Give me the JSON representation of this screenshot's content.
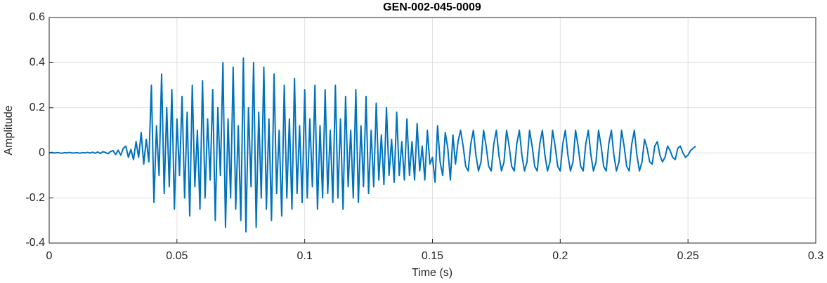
{
  "chart_data": {
    "type": "line",
    "title": "GEN-002-045-0009",
    "xlabel": "Time (s)",
    "ylabel": "Amplitude",
    "xlim": [
      0,
      0.3
    ],
    "xticks": [
      0,
      0.05,
      0.1,
      0.15,
      0.2,
      0.25,
      0.3
    ],
    "ylim": [
      -0.4,
      0.6
    ],
    "yticks": [
      -0.4,
      -0.2,
      0,
      0.2,
      0.4,
      0.6
    ],
    "grid": true,
    "x": [
      0,
      0.001,
      0.002,
      0.003,
      0.004,
      0.005,
      0.006,
      0.007,
      0.008,
      0.009,
      0.01,
      0.011,
      0.012,
      0.013,
      0.014,
      0.015,
      0.016,
      0.017,
      0.018,
      0.019,
      0.02,
      0.021,
      0.022,
      0.023,
      0.024,
      0.025,
      0.026,
      0.027,
      0.028,
      0.029,
      0.03,
      0.031,
      0.032,
      0.033,
      0.034,
      0.035,
      0.036,
      0.037,
      0.038,
      0.039,
      0.04,
      0.041,
      0.042,
      0.043,
      0.044,
      0.045,
      0.046,
      0.047,
      0.048,
      0.049,
      0.05,
      0.051,
      0.052,
      0.053,
      0.054,
      0.055,
      0.056,
      0.057,
      0.058,
      0.059,
      0.06,
      0.061,
      0.062,
      0.063,
      0.064,
      0.065,
      0.066,
      0.067,
      0.068,
      0.069,
      0.07,
      0.071,
      0.072,
      0.073,
      0.074,
      0.075,
      0.076,
      0.077,
      0.078,
      0.079,
      0.08,
      0.081,
      0.082,
      0.083,
      0.084,
      0.085,
      0.086,
      0.087,
      0.088,
      0.089,
      0.09,
      0.091,
      0.092,
      0.093,
      0.094,
      0.095,
      0.096,
      0.097,
      0.098,
      0.099,
      0.1,
      0.101,
      0.102,
      0.103,
      0.104,
      0.105,
      0.106,
      0.107,
      0.108,
      0.109,
      0.11,
      0.111,
      0.112,
      0.113,
      0.114,
      0.115,
      0.116,
      0.117,
      0.118,
      0.119,
      0.12,
      0.121,
      0.122,
      0.123,
      0.124,
      0.125,
      0.126,
      0.127,
      0.128,
      0.129,
      0.13,
      0.131,
      0.132,
      0.133,
      0.134,
      0.135,
      0.136,
      0.137,
      0.138,
      0.139,
      0.14,
      0.141,
      0.142,
      0.143,
      0.144,
      0.145,
      0.146,
      0.147,
      0.148,
      0.149,
      0.15,
      0.151,
      0.152,
      0.153,
      0.154,
      0.155,
      0.156,
      0.157,
      0.158,
      0.159,
      0.16,
      0.161,
      0.162,
      0.163,
      0.164,
      0.165,
      0.166,
      0.167,
      0.168,
      0.169,
      0.17,
      0.171,
      0.172,
      0.173,
      0.174,
      0.175,
      0.176,
      0.177,
      0.178,
      0.179,
      0.18,
      0.181,
      0.182,
      0.183,
      0.184,
      0.185,
      0.186,
      0.187,
      0.188,
      0.189,
      0.19,
      0.191,
      0.192,
      0.193,
      0.194,
      0.195,
      0.196,
      0.197,
      0.198,
      0.199,
      0.2,
      0.201,
      0.202,
      0.203,
      0.204,
      0.205,
      0.206,
      0.207,
      0.208,
      0.209,
      0.21,
      0.211,
      0.212,
      0.213,
      0.214,
      0.215,
      0.216,
      0.217,
      0.218,
      0.219,
      0.22,
      0.221,
      0.222,
      0.223,
      0.224,
      0.225,
      0.226,
      0.227,
      0.228,
      0.229,
      0.23,
      0.231,
      0.232,
      0.233,
      0.234,
      0.235,
      0.236,
      0.237,
      0.238,
      0.239,
      0.24,
      0.241,
      0.242,
      0.243,
      0.244,
      0.245,
      0.246,
      0.247,
      0.248,
      0.249,
      0.25,
      0.251,
      0.252,
      0.253
    ],
    "series": [
      {
        "name": "Amplitude",
        "color": "#0072bd",
        "values": [
          0,
          0.002,
          -0.001,
          0.001,
          0,
          -0.002,
          0.001,
          0,
          0.002,
          -0.001,
          0,
          0.001,
          -0.002,
          0.001,
          0,
          0.002,
          -0.001,
          0.003,
          -0.002,
          0.004,
          -0.003,
          0.005,
          0.002,
          -0.004,
          0.006,
          0.01,
          -0.008,
          0.012,
          -0.01,
          0.02,
          0.03,
          -0.02,
          0.015,
          -0.03,
          0.05,
          -0.02,
          0.09,
          -0.05,
          0.06,
          -0.04,
          0.3,
          -0.22,
          0.12,
          -0.1,
          0.35,
          -0.18,
          0.2,
          -0.15,
          0.28,
          -0.25,
          0.15,
          -0.1,
          0.25,
          -0.2,
          0.18,
          -0.28,
          0.3,
          -0.15,
          0.1,
          -0.25,
          0.32,
          -0.2,
          0.15,
          -0.12,
          0.28,
          -0.3,
          0.2,
          -0.1,
          0.4,
          -0.33,
          0.15,
          -0.2,
          0.38,
          -0.25,
          0.12,
          -0.3,
          0.42,
          -0.35,
          0.2,
          -0.15,
          0.4,
          -0.33,
          0.18,
          -0.2,
          0.38,
          -0.25,
          0.15,
          -0.3,
          0.35,
          -0.18,
          0.1,
          -0.28,
          0.3,
          -0.2,
          0.15,
          -0.25,
          0.33,
          -0.18,
          0.12,
          -0.22,
          0.28,
          -0.2,
          0.15,
          -0.15,
          0.3,
          -0.25,
          0.12,
          -0.2,
          0.28,
          -0.18,
          0.1,
          -0.22,
          0.3,
          -0.2,
          0.15,
          -0.25,
          0.25,
          -0.15,
          0.1,
          -0.2,
          0.28,
          -0.22,
          0.12,
          -0.15,
          0.25,
          -0.18,
          0.1,
          -0.15,
          0.22,
          -0.12,
          0.08,
          -0.14,
          0.2,
          -0.1,
          0.06,
          -0.13,
          0.18,
          -0.1,
          0.05,
          -0.12,
          0.15,
          -0.1,
          0.05,
          -0.12,
          0.13,
          -0.08,
          0.03,
          -0.12,
          0.1,
          -0.05,
          -0.02,
          -0.13,
          0.12,
          -0.04,
          -0.1,
          0.09,
          0.02,
          -0.12,
          0.08,
          -0.05,
          0.05,
          0.1,
          0.03,
          -0.06,
          -0.08,
          0.04,
          0.1,
          -0.01,
          -0.08,
          -0.04,
          0.1,
          0.03,
          -0.06,
          -0.08,
          0.04,
          0.1,
          -0.01,
          -0.08,
          -0.04,
          0.1,
          0.03,
          -0.06,
          -0.08,
          0.04,
          0.1,
          -0.01,
          -0.08,
          -0.04,
          0.1,
          0.03,
          -0.06,
          -0.08,
          0.04,
          0.1,
          -0.01,
          -0.08,
          -0.04,
          0.1,
          0.03,
          -0.06,
          -0.08,
          0.04,
          0.1,
          -0.01,
          -0.08,
          -0.04,
          0.1,
          0.03,
          -0.06,
          -0.08,
          0.04,
          0.1,
          -0.01,
          -0.08,
          -0.04,
          0.1,
          0.03,
          -0.06,
          -0.08,
          0.04,
          0.1,
          -0.01,
          -0.08,
          -0.04,
          0.1,
          0.03,
          -0.06,
          -0.08,
          0.04,
          0.1,
          -0.01,
          -0.08,
          -0.04,
          0.06,
          0.02,
          -0.04,
          -0.05,
          0.03,
          0.05,
          -0.01,
          -0.04,
          -0.02,
          0.03,
          0.01,
          -0.02,
          -0.03,
          0.02,
          0.03,
          0,
          -0.02,
          -0.01,
          0.01,
          0.02,
          0.03
        ]
      }
    ]
  }
}
